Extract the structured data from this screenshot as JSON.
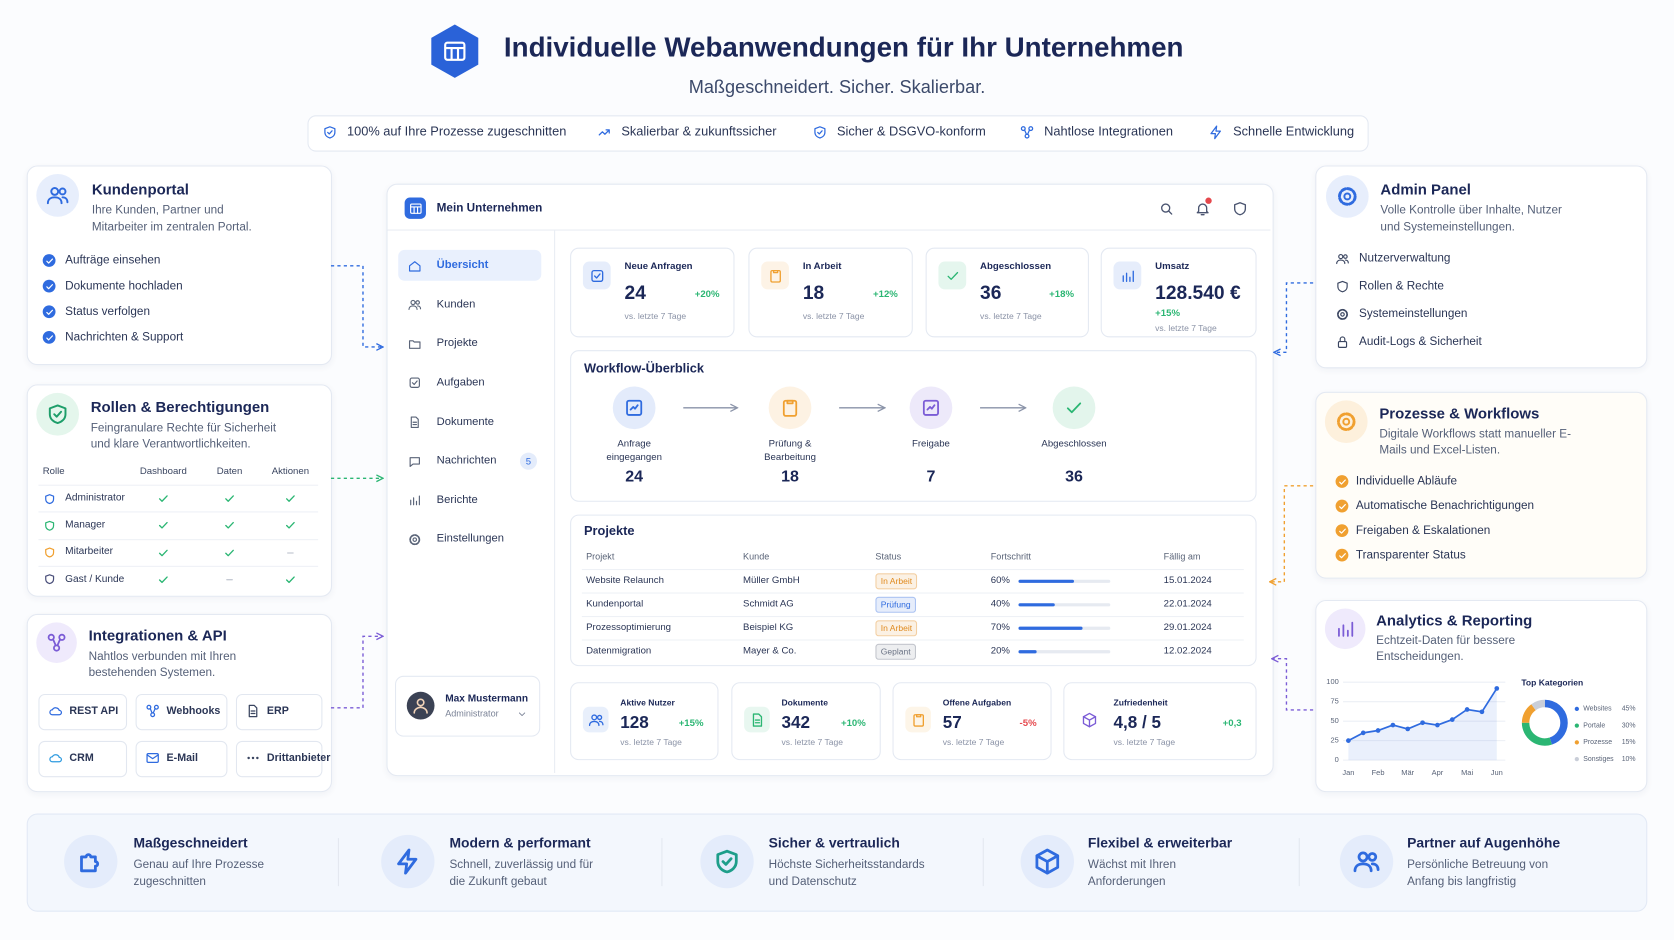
{
  "header": {
    "title": "Individuelle Webanwendungen für Ihr Unternehmen",
    "subtitle": "Maßgeschneidert. Sicher. Skalierbar."
  },
  "badges": [
    "100% auf Ihre Prozesse zugeschnitten",
    "Skalierbar & zukunftssicher",
    "Sicher & DSGVO-konform",
    "Nahtlose Integrationen",
    "Schnelle Entwicklung"
  ],
  "kundenportal": {
    "title": "Kundenportal",
    "text": "Ihre Kunden, Partner und Mitarbeiter im zentralen Portal.",
    "items": [
      "Aufträge einsehen",
      "Dokumente hochladen",
      "Status verfolgen",
      "Nachrichten & Support"
    ]
  },
  "rollen": {
    "title": "Rollen & Berechtigungen",
    "text": "Feingranulare Rechte für Sicherheit und klare Verantwortlichkeiten.",
    "columns": [
      "Rolle",
      "Dashboard",
      "Daten",
      "Aktionen"
    ],
    "rows": [
      {
        "role": "Administrator",
        "color": "#2f6bdf",
        "access": [
          true,
          true,
          true
        ]
      },
      {
        "role": "Manager",
        "color": "#2bb673",
        "access": [
          true,
          true,
          true
        ]
      },
      {
        "role": "Mitarbeiter",
        "color": "#f0a030",
        "access": [
          true,
          true,
          false
        ]
      },
      {
        "role": "Gast / Kunde",
        "color": "#4a4f7a",
        "access": [
          true,
          false,
          true
        ]
      }
    ]
  },
  "integrationen": {
    "title": "Integrationen & API",
    "text": "Nahtlos verbunden mit Ihren bestehenden Systemen.",
    "items": [
      "REST API",
      "Webhooks",
      "ERP",
      "CRM",
      "E-Mail",
      "Drittanbieter"
    ]
  },
  "app": {
    "company": "Mein Unternehmen",
    "nav": [
      {
        "label": "Übersicht",
        "active": true
      },
      {
        "label": "Kunden"
      },
      {
        "label": "Projekte"
      },
      {
        "label": "Aufgaben"
      },
      {
        "label": "Dokumente"
      },
      {
        "label": "Nachrichten",
        "badge": "5"
      },
      {
        "label": "Berichte"
      },
      {
        "label": "Einstellungen"
      }
    ],
    "user": {
      "name": "Max Mustermann",
      "role": "Administrator"
    },
    "kpis": [
      {
        "label": "Neue Anfragen",
        "value": "24",
        "delta": "+20%",
        "note": "vs. letzte 7 Tage",
        "color": "#2f6bdf"
      },
      {
        "label": "In Arbeit",
        "value": "18",
        "delta": "+12%",
        "note": "vs. letzte 7 Tage",
        "color": "#f0a030"
      },
      {
        "label": "Abgeschlossen",
        "value": "36",
        "delta": "+18%",
        "note": "vs. letzte 7 Tage",
        "color": "#2bb673"
      },
      {
        "label": "Umsatz",
        "value": "128.540 €",
        "delta": "+15%",
        "note": "vs. letzte 7 Tage",
        "color": "#2f6bdf"
      }
    ],
    "workflow": {
      "title": "Workflow-Überblick",
      "steps": [
        {
          "label": "Anfrage eingegangen",
          "value": "24",
          "color": "#2f6bdf"
        },
        {
          "label": "Prüfung & Bearbeitung",
          "value": "18",
          "color": "#f0a030"
        },
        {
          "label": "Freigabe",
          "value": "7",
          "color": "#7b5cd6"
        },
        {
          "label": "Abgeschlossen",
          "value": "36",
          "color": "#2bb673"
        }
      ]
    },
    "projects": {
      "title": "Projekte",
      "columns": [
        "Projekt",
        "Kunde",
        "Status",
        "Fortschritt",
        "Fällig am"
      ],
      "xlim": [
        0,
        100
      ],
      "rows": [
        {
          "name": "Website Relaunch",
          "client": "Müller GmbH",
          "status": "In Arbeit",
          "status_color": "#e08a1e",
          "progress": 60,
          "progress_label": "60%",
          "due": "15.01.2024"
        },
        {
          "name": "Kundenportal",
          "client": "Schmidt AG",
          "status": "Prüfung",
          "status_color": "#2f6bdf",
          "progress": 40,
          "progress_label": "40%",
          "due": "22.01.2024"
        },
        {
          "name": "Prozessoptimierung",
          "client": "Beispiel KG",
          "status": "In Arbeit",
          "status_color": "#e08a1e",
          "progress": 70,
          "progress_label": "70%",
          "due": "29.01.2024"
        },
        {
          "name": "Datenmigration",
          "client": "Mayer & Co.",
          "status": "Geplant",
          "status_color": "#6b7385",
          "progress": 20,
          "progress_label": "20%",
          "due": "12.02.2024"
        }
      ]
    },
    "stats": [
      {
        "label": "Aktive Nutzer",
        "value": "128",
        "delta": "+15%",
        "note": "vs. letzte 7 Tage",
        "color": "#2f6bdf",
        "delta_color": "#2bb673"
      },
      {
        "label": "Dokumente",
        "value": "342",
        "delta": "+10%",
        "note": "vs. letzte 7 Tage",
        "color": "#2bb673",
        "delta_color": "#2bb673"
      },
      {
        "label": "Offene Aufgaben",
        "value": "57",
        "delta": "-5%",
        "note": "vs. letzte 7 Tage",
        "color": "#f0a030",
        "delta_color": "#e5484d"
      },
      {
        "label": "Zufriedenheit",
        "value": "4,8 / 5",
        "delta": "+0,3",
        "note": "vs. letzte 7 Tage",
        "color": "#7b5cd6",
        "delta_color": "#2bb673"
      }
    ]
  },
  "admin": {
    "title": "Admin Panel",
    "text": "Volle Kontrolle über Inhalte, Nutzer und Systemeinstellungen.",
    "items": [
      "Nutzerverwaltung",
      "Rollen & Rechte",
      "Systemeinstellungen",
      "Audit-Logs & Sicherheit"
    ]
  },
  "prozesse": {
    "title": "Prozesse & Workflows",
    "text": "Digitale Workflows statt manueller E-Mails und Excel-Listen.",
    "items": [
      "Individuelle Abläufe",
      "Automatische Benachrichtigungen",
      "Freigaben & Eskalationen",
      "Transparenter Status"
    ]
  },
  "analytics": {
    "title": "Analytics & Reporting",
    "text": "Echtzeit-Daten für bessere Entscheidungen."
  },
  "chart_data": [
    {
      "type": "line",
      "categories": [
        "Jan",
        null,
        "Feb",
        null,
        "Mär",
        null,
        "Apr",
        null,
        "Mai",
        null,
        "Jun"
      ],
      "values": [
        25,
        35,
        38,
        45,
        40,
        48,
        45,
        52,
        65,
        62,
        92
      ],
      "color": "#2f6bdf",
      "ylim": [
        0,
        100
      ],
      "yticks": [
        0,
        25,
        50,
        75,
        100
      ],
      "grid": true
    },
    {
      "type": "pie",
      "title": "Top Kategorien",
      "categories": [
        "Websites",
        "Portale",
        "Prozesse",
        "Sonstiges"
      ],
      "values": [
        45,
        30,
        15,
        10
      ],
      "value_labels": [
        "45%",
        "30%",
        "15%",
        "10%"
      ],
      "colors": [
        "#2f6bdf",
        "#2bb673",
        "#f0a030",
        "#c9ced8"
      ]
    }
  ],
  "features": [
    {
      "title": "Maßgeschneidert",
      "text": "Genau auf Ihre Prozesse zugeschnitten"
    },
    {
      "title": "Modern & performant",
      "text": "Schnell, zuverlässig und für die Zukunft gebaut"
    },
    {
      "title": "Sicher & vertraulich",
      "text": "Höchste Sicherheitsstandards und Datenschutz"
    },
    {
      "title": "Flexibel & erweiterbar",
      "text": "Wächst mit Ihren Anforderungen"
    },
    {
      "title": "Partner auf Augenhöhe",
      "text": "Persönliche Betreuung von Anfang bis langfristig"
    }
  ]
}
